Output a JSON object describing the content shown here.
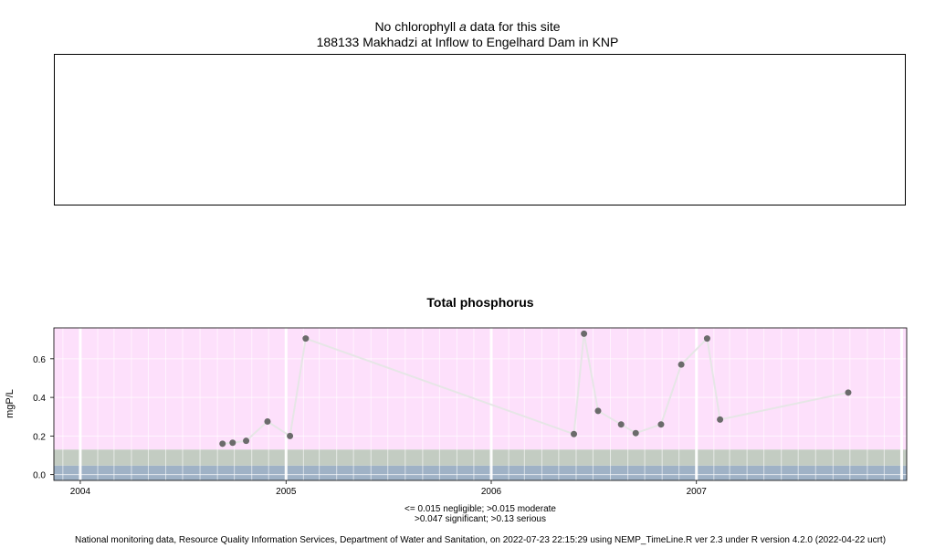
{
  "header": {
    "title_prefix": "No chlorophyll ",
    "title_italic": "a",
    "title_suffix": " data for this site",
    "site": "188133 Makhadzi at Inflow to Engelhard Dam in KNP"
  },
  "chart_data": {
    "type": "line",
    "title": "Total phosphorus",
    "ylabel": "mgP/L",
    "xlabel": "",
    "x_ticks": [
      "2004",
      "2005",
      "2006",
      "2007"
    ],
    "y_ticks": [
      "0.0",
      "0.2",
      "0.4",
      "0.6"
    ],
    "xlim": [
      "2003-11-15",
      "2008-01-10"
    ],
    "ylim": [
      -0.03,
      0.76
    ],
    "thresholds": [
      {
        "label": "negligible",
        "max": 0.015,
        "color": "#9fb2c6"
      },
      {
        "label": "moderate",
        "max": 0.047,
        "color": "#9fb2c6"
      },
      {
        "label": "significant",
        "max": 0.13,
        "color": "#c3ccc2"
      },
      {
        "label": "serious",
        "max": 0.76,
        "color": "#fde0fb"
      }
    ],
    "series": [
      {
        "points": [
          {
            "x": "2004-09-10",
            "y": 0.16
          },
          {
            "x": "2004-09-28",
            "y": 0.165
          },
          {
            "x": "2004-10-22",
            "y": 0.175
          },
          {
            "x": "2004-11-29",
            "y": 0.275
          },
          {
            "x": "2005-01-08",
            "y": 0.2
          },
          {
            "x": "2005-02-05",
            "y": 0.705
          },
          {
            "x": "2006-05-28",
            "y": 0.21
          },
          {
            "x": "2006-06-15",
            "y": 0.73
          },
          {
            "x": "2006-07-10",
            "y": 0.33
          },
          {
            "x": "2006-08-20",
            "y": 0.26
          },
          {
            "x": "2006-09-15",
            "y": 0.215
          },
          {
            "x": "2006-10-30",
            "y": 0.26
          },
          {
            "x": "2006-12-05",
            "y": 0.57
          },
          {
            "x": "2007-01-20",
            "y": 0.705
          },
          {
            "x": "2007-02-12",
            "y": 0.285
          },
          {
            "x": "2007-09-28",
            "y": 0.425
          }
        ],
        "marker_color": "#6b6b6b",
        "line_color": "#e6e6e6"
      }
    ]
  },
  "legend": {
    "line1": "<= 0.015 negligible; >0.015 moderate",
    "line2": ">0.047 significant; >0.13 serious"
  },
  "footer": "National monitoring data, Resource Quality Information Services, Department of Water and Sanitation, on 2022-07-23 22:15:29 using NEMP_TimeLine.R ver 2.3 under R version 4.2.0 (2022-04-22 ucrt)"
}
